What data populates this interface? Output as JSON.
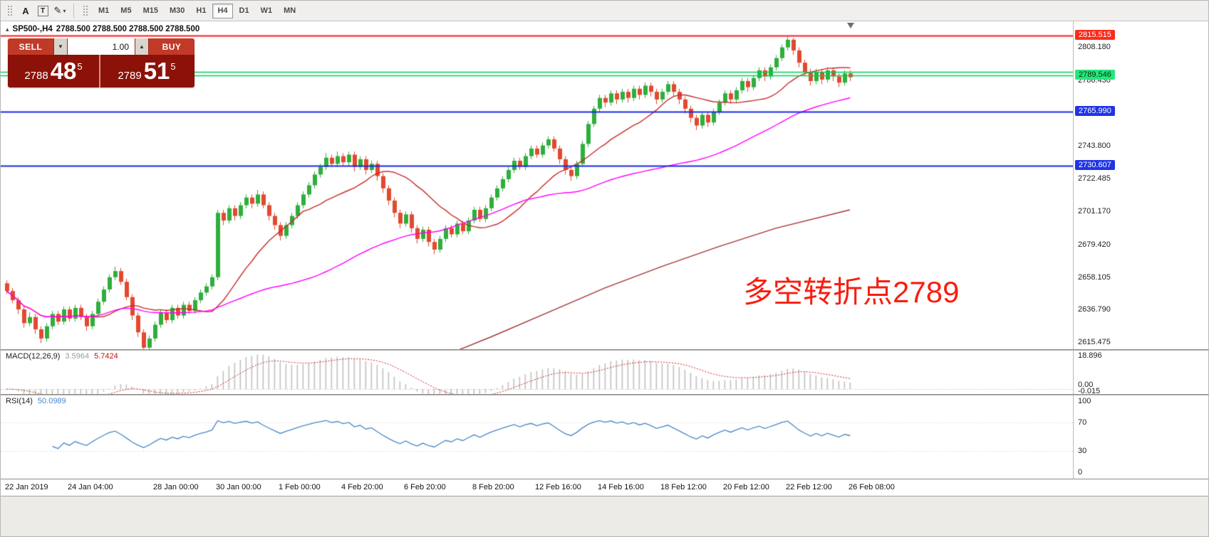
{
  "toolbar": {
    "tools": [
      {
        "glyph": "A"
      },
      {
        "glyph": "T"
      },
      {
        "glyph": "✎"
      }
    ],
    "dropdown_glyph": "▾",
    "timeframes": [
      "M1",
      "M5",
      "M15",
      "M30",
      "H1",
      "H4",
      "D1",
      "W1",
      "MN"
    ],
    "active_timeframe": "H4"
  },
  "chart_header": {
    "marker": "▴",
    "symbol": "SP500-,H4",
    "ohlc": "2788.500 2788.500 2788.500 2788.500"
  },
  "trade_panel": {
    "sell_label": "SELL",
    "buy_label": "BUY",
    "volume": "1.00",
    "spinner_down": "▼",
    "spinner_up": "▲",
    "bid_prefix": "2788",
    "bid_big": "48",
    "bid_sup": "5",
    "ask_prefix": "2789",
    "ask_big": "51",
    "ask_sup": "5"
  },
  "annotation": {
    "text": "多空转折点2789",
    "color": "#f91d10"
  },
  "price_axis": {
    "labels": [
      "2808.180",
      "2786.430",
      "2743.800",
      "2722.485",
      "2701.170",
      "2679.420",
      "2658.105",
      "2636.790",
      "2615.475"
    ],
    "tags": [
      {
        "text": "2815.515",
        "value": 2815.515,
        "bg": "#fb2b1b",
        "fg": "#ffffff"
      },
      {
        "text": "2789.546",
        "value": 2789.546,
        "bg": "#27e57d",
        "fg": "#05310f"
      },
      {
        "text": "2765.990",
        "value": 2765.99,
        "bg": "#2033e6",
        "fg": "#ffffff"
      },
      {
        "text": "2730.607",
        "value": 2730.607,
        "bg": "#2033e6",
        "fg": "#ffffff"
      }
    ]
  },
  "macd_panel": {
    "label": "MACD(12,26,9)",
    "main_value": "3.5964",
    "signal_value": "5.7424",
    "axis": [
      {
        "text": "18.896",
        "v": 18.896
      },
      {
        "text": "0.00",
        "v": 2.2
      },
      {
        "text": "-0.015",
        "v": -1.2
      }
    ]
  },
  "rsi_panel": {
    "label": "RSI(14)",
    "value": "50.0989",
    "axis": [
      {
        "text": "100",
        "v": 100
      },
      {
        "text": "70",
        "v": 70
      },
      {
        "text": "30",
        "v": 30
      },
      {
        "text": "0",
        "v": 0
      }
    ]
  },
  "time_axis": [
    {
      "label": "22 Jan 2019",
      "bar": 0
    },
    {
      "label": "24 Jan 04:00",
      "bar": 11
    },
    {
      "label": "28 Jan 00:00",
      "bar": 26
    },
    {
      "label": "30 Jan 00:00",
      "bar": 37
    },
    {
      "label": "1 Feb 00:00",
      "bar": 48
    },
    {
      "label": "4 Feb 20:00",
      "bar": 59
    },
    {
      "label": "6 Feb 20:00",
      "bar": 70
    },
    {
      "label": "8 Feb 20:00",
      "bar": 82
    },
    {
      "label": "12 Feb 16:00",
      "bar": 93
    },
    {
      "label": "14 Feb 16:00",
      "bar": 104
    },
    {
      "label": "18 Feb 12:00",
      "bar": 115
    },
    {
      "label": "20 Feb 12:00",
      "bar": 126
    },
    {
      "label": "22 Feb 12:00",
      "bar": 137
    },
    {
      "label": "26 Feb 08:00",
      "bar": 148
    }
  ],
  "chart_data": {
    "type": "candlestick",
    "symbol": "SP500-",
    "timeframe": "H4",
    "title": "SP500-,H4",
    "price_range": [
      2611,
      2825
    ],
    "candle_up": "#2fae3d",
    "candle_down": "#e2492f",
    "candles": [
      [
        2654,
        2656,
        2647,
        2649
      ],
      [
        2649,
        2651,
        2641,
        2643
      ],
      [
        2643,
        2645,
        2634,
        2637
      ],
      [
        2637,
        2639,
        2625,
        2628
      ],
      [
        2628,
        2635,
        2626,
        2632
      ],
      [
        2632,
        2634,
        2621,
        2624
      ],
      [
        2624,
        2626,
        2615,
        2618
      ],
      [
        2618,
        2628,
        2616,
        2626
      ],
      [
        2626,
        2636,
        2624,
        2634
      ],
      [
        2634,
        2636,
        2627,
        2629
      ],
      [
        2629,
        2639,
        2627,
        2637
      ],
      [
        2637,
        2639,
        2629,
        2631
      ],
      [
        2631,
        2640,
        2629,
        2638
      ],
      [
        2638,
        2640,
        2630,
        2632
      ],
      [
        2632,
        2634,
        2623,
        2626
      ],
      [
        2626,
        2636,
        2624,
        2634
      ],
      [
        2634,
        2644,
        2632,
        2642
      ],
      [
        2642,
        2652,
        2640,
        2650
      ],
      [
        2650,
        2660,
        2648,
        2658
      ],
      [
        2658,
        2665,
        2656,
        2662
      ],
      [
        2662,
        2664,
        2653,
        2655
      ],
      [
        2655,
        2657,
        2643,
        2645
      ],
      [
        2645,
        2647,
        2630,
        2633
      ],
      [
        2633,
        2635,
        2619,
        2622
      ],
      [
        2622,
        2624,
        2607,
        2612
      ],
      [
        2612,
        2620,
        2610,
        2618
      ],
      [
        2618,
        2629,
        2616,
        2627
      ],
      [
        2627,
        2637,
        2625,
        2635
      ],
      [
        2635,
        2637,
        2628,
        2630
      ],
      [
        2630,
        2640,
        2628,
        2638
      ],
      [
        2638,
        2640,
        2631,
        2633
      ],
      [
        2633,
        2642,
        2631,
        2640
      ],
      [
        2640,
        2642,
        2634,
        2636
      ],
      [
        2636,
        2645,
        2634,
        2643
      ],
      [
        2643,
        2650,
        2641,
        2648
      ],
      [
        2648,
        2654,
        2646,
        2652
      ],
      [
        2652,
        2660,
        2650,
        2658
      ],
      [
        2658,
        2702,
        2656,
        2700
      ],
      [
        2700,
        2702,
        2692,
        2695
      ],
      [
        2695,
        2705,
        2693,
        2703
      ],
      [
        2703,
        2705,
        2695,
        2698
      ],
      [
        2698,
        2707,
        2696,
        2705
      ],
      [
        2705,
        2712,
        2703,
        2710
      ],
      [
        2710,
        2712,
        2703,
        2706
      ],
      [
        2706,
        2715,
        2704,
        2712
      ],
      [
        2712,
        2714,
        2703,
        2705
      ],
      [
        2705,
        2707,
        2695,
        2698
      ],
      [
        2698,
        2700,
        2689,
        2692
      ],
      [
        2692,
        2694,
        2682,
        2685
      ],
      [
        2685,
        2694,
        2683,
        2692
      ],
      [
        2692,
        2700,
        2690,
        2698
      ],
      [
        2698,
        2707,
        2696,
        2705
      ],
      [
        2705,
        2714,
        2703,
        2712
      ],
      [
        2712,
        2720,
        2710,
        2718
      ],
      [
        2718,
        2727,
        2716,
        2725
      ],
      [
        2725,
        2732,
        2723,
        2730
      ],
      [
        2730,
        2739,
        2728,
        2736
      ],
      [
        2736,
        2738,
        2730,
        2732
      ],
      [
        2732,
        2740,
        2730,
        2737
      ],
      [
        2737,
        2739,
        2731,
        2733
      ],
      [
        2733,
        2740,
        2731,
        2738
      ],
      [
        2738,
        2740,
        2727,
        2730
      ],
      [
        2730,
        2737,
        2728,
        2735
      ],
      [
        2735,
        2737,
        2725,
        2728
      ],
      [
        2728,
        2734,
        2726,
        2732
      ],
      [
        2732,
        2734,
        2721,
        2724
      ],
      [
        2724,
        2726,
        2713,
        2716
      ],
      [
        2716,
        2718,
        2705,
        2708
      ],
      [
        2708,
        2710,
        2697,
        2700
      ],
      [
        2700,
        2702,
        2690,
        2693
      ],
      [
        2693,
        2701,
        2691,
        2699
      ],
      [
        2699,
        2701,
        2687,
        2690
      ],
      [
        2690,
        2692,
        2680,
        2683
      ],
      [
        2683,
        2691,
        2681,
        2689
      ],
      [
        2689,
        2691,
        2678,
        2681
      ],
      [
        2681,
        2683,
        2673,
        2676
      ],
      [
        2676,
        2685,
        2674,
        2683
      ],
      [
        2683,
        2692,
        2681,
        2690
      ],
      [
        2690,
        2692,
        2684,
        2686
      ],
      [
        2686,
        2695,
        2684,
        2693
      ],
      [
        2693,
        2695,
        2686,
        2688
      ],
      [
        2688,
        2697,
        2686,
        2695
      ],
      [
        2695,
        2704,
        2693,
        2702
      ],
      [
        2702,
        2704,
        2694,
        2696
      ],
      [
        2696,
        2705,
        2694,
        2703
      ],
      [
        2703,
        2712,
        2701,
        2710
      ],
      [
        2710,
        2718,
        2708,
        2716
      ],
      [
        2716,
        2724,
        2714,
        2722
      ],
      [
        2722,
        2730,
        2720,
        2728
      ],
      [
        2728,
        2736,
        2726,
        2734
      ],
      [
        2734,
        2736,
        2728,
        2730
      ],
      [
        2730,
        2739,
        2728,
        2737
      ],
      [
        2737,
        2744,
        2735,
        2742
      ],
      [
        2742,
        2744,
        2736,
        2738
      ],
      [
        2738,
        2746,
        2736,
        2744
      ],
      [
        2744,
        2750,
        2742,
        2748
      ],
      [
        2748,
        2750,
        2740,
        2742
      ],
      [
        2742,
        2744,
        2732,
        2735
      ],
      [
        2735,
        2737,
        2725,
        2728
      ],
      [
        2728,
        2730,
        2721,
        2724
      ],
      [
        2724,
        2734,
        2722,
        2732
      ],
      [
        2732,
        2747,
        2730,
        2745
      ],
      [
        2745,
        2760,
        2743,
        2758
      ],
      [
        2758,
        2770,
        2756,
        2768
      ],
      [
        2768,
        2777,
        2766,
        2775
      ],
      [
        2775,
        2777,
        2769,
        2772
      ],
      [
        2772,
        2780,
        2770,
        2778
      ],
      [
        2778,
        2780,
        2771,
        2774
      ],
      [
        2774,
        2781,
        2772,
        2779
      ],
      [
        2779,
        2781,
        2772,
        2775
      ],
      [
        2775,
        2783,
        2773,
        2781
      ],
      [
        2781,
        2783,
        2774,
        2777
      ],
      [
        2777,
        2785,
        2775,
        2783
      ],
      [
        2783,
        2785,
        2776,
        2779
      ],
      [
        2779,
        2781,
        2771,
        2774
      ],
      [
        2774,
        2781,
        2772,
        2779
      ],
      [
        2779,
        2786,
        2777,
        2784
      ],
      [
        2784,
        2786,
        2776,
        2779
      ],
      [
        2779,
        2781,
        2771,
        2774
      ],
      [
        2774,
        2776,
        2765,
        2768
      ],
      [
        2768,
        2770,
        2759,
        2762
      ],
      [
        2762,
        2764,
        2754,
        2757
      ],
      [
        2757,
        2766,
        2755,
        2764
      ],
      [
        2764,
        2766,
        2756,
        2759
      ],
      [
        2759,
        2768,
        2757,
        2766
      ],
      [
        2766,
        2774,
        2764,
        2772
      ],
      [
        2772,
        2780,
        2770,
        2778
      ],
      [
        2778,
        2780,
        2771,
        2774
      ],
      [
        2774,
        2782,
        2772,
        2780
      ],
      [
        2780,
        2788,
        2778,
        2786
      ],
      [
        2786,
        2788,
        2779,
        2782
      ],
      [
        2782,
        2790,
        2780,
        2788
      ],
      [
        2788,
        2795,
        2786,
        2793
      ],
      [
        2793,
        2795,
        2786,
        2789
      ],
      [
        2789,
        2797,
        2787,
        2795
      ],
      [
        2795,
        2803,
        2793,
        2801
      ],
      [
        2801,
        2810,
        2799,
        2808
      ],
      [
        2808,
        2815,
        2806,
        2813
      ],
      [
        2813,
        2814,
        2803,
        2806
      ],
      [
        2806,
        2808,
        2795,
        2798
      ],
      [
        2798,
        2800,
        2789,
        2792
      ],
      [
        2792,
        2794,
        2783,
        2786
      ],
      [
        2786,
        2794,
        2784,
        2792
      ],
      [
        2792,
        2794,
        2784,
        2787
      ],
      [
        2787,
        2795,
        2785,
        2793
      ],
      [
        2793,
        2795,
        2786,
        2789
      ],
      [
        2789,
        2791,
        2782,
        2785
      ],
      [
        2785,
        2793,
        2783,
        2791
      ],
      [
        2791,
        2793,
        2786,
        2788.5
      ]
    ],
    "overlays": {
      "ma_fast": {
        "period": 16,
        "color": "#c62b2b"
      },
      "ma_slow": {
        "period": 55,
        "color": "#ff00ff"
      },
      "ma_long": {
        "color": "#a83232",
        "points": [
          [
            40,
            2560
          ],
          [
            55,
            2578
          ],
          [
            65,
            2592
          ],
          [
            75,
            2604
          ],
          [
            85,
            2619
          ],
          [
            95,
            2635
          ],
          [
            105,
            2651
          ],
          [
            115,
            2665
          ],
          [
            125,
            2678
          ],
          [
            135,
            2690
          ],
          [
            148,
            2702
          ]
        ]
      }
    },
    "hlines": [
      {
        "value": 2815.515,
        "color": "#ff1a1a",
        "width": 2
      },
      {
        "value": 2791.9,
        "color": "#00cf55",
        "width": 1.5
      },
      {
        "value": 2789.546,
        "color": "#00cf55",
        "width": 1.5
      },
      {
        "value": 2765.99,
        "color": "#1a28e0",
        "width": 2
      },
      {
        "value": 2730.607,
        "color": "#1a28e0",
        "width": 2
      }
    ],
    "macd": {
      "fast": 12,
      "slow": 26,
      "signal": 9,
      "current_main": 3.5964,
      "current_signal": 5.7424,
      "range": [
        -2.8,
        21.5
      ],
      "hist_color": "#c4c4c4",
      "signal_color": "#cf1f1f"
    },
    "rsi": {
      "period": 14,
      "current": 50.0989,
      "levels": [
        70,
        30
      ],
      "color": "#4a86c8",
      "range": [
        0,
        100
      ]
    }
  }
}
